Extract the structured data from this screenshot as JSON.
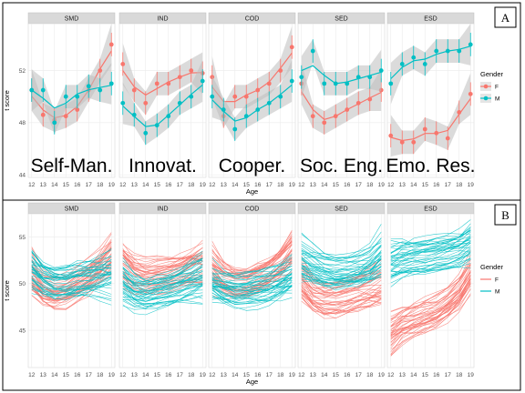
{
  "chart_data": [
    {
      "panel_label": "A",
      "type": "scatter",
      "xlabel": "Age",
      "ylabel": "t score",
      "x": [
        12,
        13,
        14,
        15,
        16,
        17,
        18,
        19
      ],
      "xlim": [
        11.7,
        19.3
      ],
      "ylim": [
        43.8,
        55.6
      ],
      "yticks": [
        44,
        48,
        52
      ],
      "grid": true,
      "legend": {
        "title": "Gender",
        "position": "right",
        "entries": [
          "F",
          "M"
        ]
      },
      "overlay_labels": [
        "Self-Man.",
        "Innovat.",
        "Cooper.",
        "Soc. Eng.",
        "Emo. Res."
      ],
      "facets": [
        {
          "label": "SMD",
          "series": [
            {
              "name": "F",
              "points": [
                50.5,
                48.6,
                48.2,
                48.5,
                49.0,
                50.5,
                52.0,
                54.0
              ]
            },
            {
              "name": "M",
              "points": [
                50.5,
                50.5,
                48.0,
                50.0,
                50.0,
                50.8,
                50.5,
                51.0
              ]
            }
          ]
        },
        {
          "label": "IND",
          "series": [
            {
              "name": "F",
              "points": [
                52.5,
                50.5,
                49.5,
                51.0,
                51.0,
                51.5,
                52.0,
                51.8
              ]
            },
            {
              "name": "M",
              "points": [
                49.5,
                48.6,
                47.2,
                47.8,
                48.5,
                49.5,
                50.0,
                51.2
              ]
            }
          ]
        },
        {
          "label": "COD",
          "series": [
            {
              "name": "F",
              "points": [
                51.5,
                48.5,
                50.0,
                50.0,
                50.5,
                51.0,
                52.0,
                53.8
              ]
            },
            {
              "name": "M",
              "points": [
                50.0,
                49.0,
                47.5,
                48.5,
                49.0,
                49.5,
                50.0,
                51.2
              ]
            }
          ]
        },
        {
          "label": "SED",
          "series": [
            {
              "name": "F",
              "points": [
                51.0,
                48.5,
                48.0,
                48.5,
                49.0,
                49.5,
                49.8,
                50.5
              ]
            },
            {
              "name": "M",
              "points": [
                51.5,
                53.5,
                51.0,
                51.0,
                51.0,
                51.5,
                51.5,
                52.0
              ]
            }
          ]
        },
        {
          "label": "ESD",
          "series": [
            {
              "name": "F",
              "points": [
                47.0,
                46.5,
                46.5,
                47.5,
                47.2,
                46.8,
                48.8,
                50.2
              ]
            },
            {
              "name": "M",
              "points": [
                51.0,
                52.5,
                53.0,
                52.5,
                53.5,
                53.5,
                53.5,
                54.0
              ]
            }
          ]
        }
      ]
    },
    {
      "panel_label": "B",
      "type": "line",
      "xlabel": "Age",
      "ylabel": "t score",
      "x": [
        12,
        13,
        14,
        15,
        16,
        17,
        18,
        19
      ],
      "xlim": [
        11.7,
        19.3
      ],
      "ylim": [
        41.0,
        57.5
      ],
      "yticks": [
        45,
        50,
        55
      ],
      "grid": true,
      "legend": {
        "title": "Gender",
        "position": "right",
        "entries": [
          "F",
          "M"
        ]
      },
      "facets": [
        {
          "label": "SMD",
          "series": [
            {
              "name": "F",
              "curve": [
                51.0,
                49.5,
                49.0,
                49.3,
                50.0,
                50.8,
                51.8,
                53.0
              ]
            },
            {
              "name": "M",
              "curve": [
                51.5,
                50.5,
                50.0,
                50.0,
                50.3,
                50.5,
                50.7,
                51.0
              ]
            }
          ]
        },
        {
          "label": "IND",
          "series": [
            {
              "name": "F",
              "curve": [
                52.0,
                51.0,
                50.7,
                50.8,
                51.0,
                51.3,
                51.7,
                52.0
              ]
            },
            {
              "name": "M",
              "curve": [
                50.0,
                49.0,
                48.7,
                49.0,
                49.3,
                49.8,
                50.3,
                50.8
              ]
            }
          ]
        },
        {
          "label": "COD",
          "series": [
            {
              "name": "F",
              "curve": [
                51.5,
                50.3,
                49.8,
                49.8,
                50.3,
                51.0,
                52.0,
                53.5
              ]
            },
            {
              "name": "M",
              "curve": [
                50.0,
                49.5,
                49.2,
                49.3,
                49.5,
                49.8,
                50.3,
                51.0
              ]
            }
          ]
        },
        {
          "label": "SED",
          "series": [
            {
              "name": "F",
              "curve": [
                50.5,
                49.0,
                48.5,
                48.5,
                48.8,
                49.2,
                49.6,
                50.0
              ]
            },
            {
              "name": "M",
              "curve": [
                52.5,
                52.0,
                51.5,
                51.3,
                51.4,
                51.6,
                52.0,
                53.0
              ]
            }
          ]
        },
        {
          "label": "ESD",
          "series": [
            {
              "name": "F",
              "curve": [
                44.5,
                45.5,
                46.0,
                46.5,
                47.0,
                47.8,
                49.0,
                51.0
              ]
            },
            {
              "name": "M",
              "curve": [
                52.0,
                52.5,
                52.8,
                53.0,
                53.3,
                53.5,
                53.8,
                54.5
              ]
            }
          ]
        }
      ]
    }
  ],
  "colors": {
    "F": "#F8766D",
    "M": "#00BFC4",
    "strip": "#d9d9d9",
    "panel_bg": "#ffffff",
    "grid": "#ebebeb",
    "ribbon": "#bdbdbd"
  }
}
